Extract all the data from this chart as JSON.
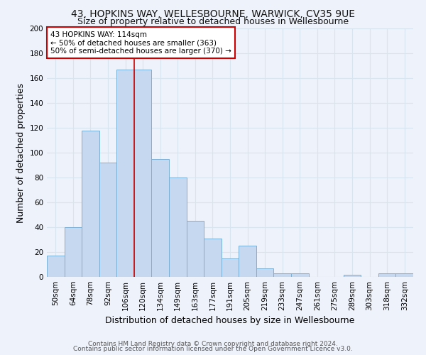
{
  "title1": "43, HOPKINS WAY, WELLESBOURNE, WARWICK, CV35 9UE",
  "title2": "Size of property relative to detached houses in Wellesbourne",
  "xlabel": "Distribution of detached houses by size in Wellesbourne",
  "ylabel": "Number of detached properties",
  "bar_labels": [
    "50sqm",
    "64sqm",
    "78sqm",
    "92sqm",
    "106sqm",
    "120sqm",
    "134sqm",
    "149sqm",
    "163sqm",
    "177sqm",
    "191sqm",
    "205sqm",
    "219sqm",
    "233sqm",
    "247sqm",
    "261sqm",
    "275sqm",
    "289sqm",
    "303sqm",
    "318sqm",
    "332sqm"
  ],
  "bar_values": [
    17,
    40,
    118,
    92,
    167,
    167,
    95,
    80,
    45,
    31,
    15,
    25,
    7,
    3,
    3,
    0,
    0,
    2,
    0,
    3,
    3
  ],
  "bar_color": "#c5d8f0",
  "bar_edge_color": "#7aafd4",
  "vline_x_index": 4.5,
  "vline_color": "#cc0000",
  "annotation_box_text": "43 HOPKINS WAY: 114sqm\n← 50% of detached houses are smaller (363)\n50% of semi-detached houses are larger (370) →",
  "annotation_box_edge_color": "#cc0000",
  "annotation_box_facecolor": "#ffffff",
  "ylim": [
    0,
    200
  ],
  "yticks": [
    0,
    20,
    40,
    60,
    80,
    100,
    120,
    140,
    160,
    180,
    200
  ],
  "footer1": "Contains HM Land Registry data © Crown copyright and database right 2024.",
  "footer2": "Contains public sector information licensed under the Open Government Licence v3.0.",
  "background_color": "#eef2fa",
  "grid_color": "#d8e4f0",
  "title1_fontsize": 10,
  "title2_fontsize": 9,
  "axis_label_fontsize": 9,
  "tick_fontsize": 7.5,
  "footer_fontsize": 6.5
}
